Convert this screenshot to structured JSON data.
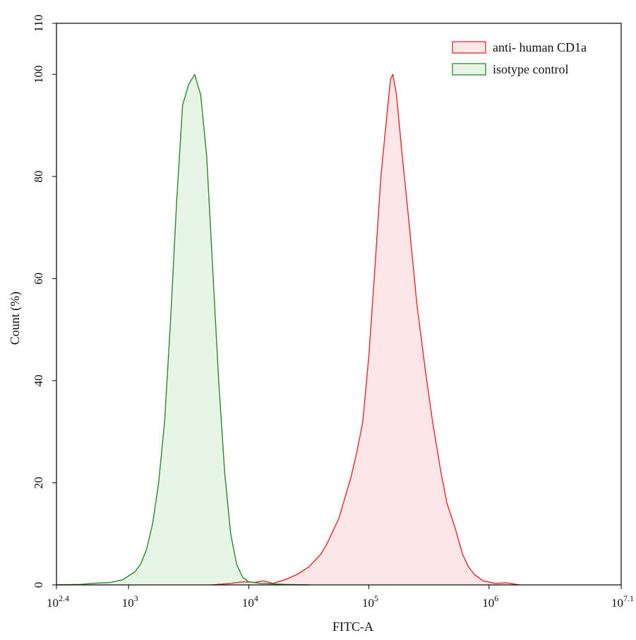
{
  "chart_data": {
    "type": "area",
    "title": "",
    "xlabel": "FITC-A",
    "ylabel": "Count  (%)",
    "xscale": "log10",
    "xlim": [
      2.4,
      7.1
    ],
    "ylim": [
      0,
      110
    ],
    "x_ticks": [
      {
        "exp": 2.4,
        "label": "10",
        "sup": "2.4"
      },
      {
        "exp": 3,
        "label": "10",
        "sup": "3"
      },
      {
        "exp": 4,
        "label": "10",
        "sup": "4"
      },
      {
        "exp": 5,
        "label": "10",
        "sup": "5"
      },
      {
        "exp": 6,
        "label": "10",
        "sup": "6"
      },
      {
        "exp": 7.1,
        "label": "10",
        "sup": "7.1"
      }
    ],
    "y_ticks": [
      "0",
      "20",
      "40",
      "60",
      "80",
      "100",
      "110"
    ],
    "grid": false,
    "legend_position": "top-right",
    "series": [
      {
        "name": "anti- human CD1a",
        "stroke": "#e8262c",
        "fill": "#fde6e7",
        "points": [
          [
            3.7,
            0
          ],
          [
            3.85,
            0.3
          ],
          [
            3.95,
            0.6
          ],
          [
            4.05,
            0.5
          ],
          [
            4.12,
            0.8
          ],
          [
            4.2,
            0.3
          ],
          [
            4.3,
            1.0
          ],
          [
            4.4,
            2.0
          ],
          [
            4.5,
            3.5
          ],
          [
            4.6,
            6.0
          ],
          [
            4.65,
            8.0
          ],
          [
            4.7,
            10.5
          ],
          [
            4.75,
            13.0
          ],
          [
            4.8,
            17.0
          ],
          [
            4.85,
            21.0
          ],
          [
            4.9,
            26.0
          ],
          [
            4.95,
            32.0
          ],
          [
            5.0,
            45.0
          ],
          [
            5.05,
            62.0
          ],
          [
            5.1,
            80.0
          ],
          [
            5.15,
            92.0
          ],
          [
            5.18,
            99.0
          ],
          [
            5.2,
            100.0
          ],
          [
            5.23,
            96.0
          ],
          [
            5.27,
            86.0
          ],
          [
            5.33,
            72.0
          ],
          [
            5.4,
            55.0
          ],
          [
            5.47,
            42.0
          ],
          [
            5.53,
            32.0
          ],
          [
            5.6,
            22.0
          ],
          [
            5.65,
            16.0
          ],
          [
            5.72,
            11.0
          ],
          [
            5.78,
            6.0
          ],
          [
            5.83,
            3.5
          ],
          [
            5.88,
            2.0
          ],
          [
            5.95,
            0.8
          ],
          [
            6.05,
            0.3
          ],
          [
            6.15,
            0.4
          ],
          [
            6.25,
            0
          ]
        ]
      },
      {
        "name": "isotype control",
        "stroke": "#2a8a2a",
        "fill": "#e7f5e7",
        "points": [
          [
            2.4,
            0
          ],
          [
            2.6,
            0.1
          ],
          [
            2.7,
            0.3
          ],
          [
            2.85,
            0.5
          ],
          [
            2.95,
            1.0
          ],
          [
            3.05,
            2.5
          ],
          [
            3.1,
            4.0
          ],
          [
            3.15,
            7.0
          ],
          [
            3.2,
            12.0
          ],
          [
            3.25,
            20.0
          ],
          [
            3.3,
            32.0
          ],
          [
            3.35,
            52.0
          ],
          [
            3.4,
            75.0
          ],
          [
            3.45,
            94.0
          ],
          [
            3.5,
            98.0
          ],
          [
            3.55,
            100.0
          ],
          [
            3.6,
            96.0
          ],
          [
            3.65,
            84.0
          ],
          [
            3.7,
            62.0
          ],
          [
            3.75,
            40.0
          ],
          [
            3.8,
            22.0
          ],
          [
            3.85,
            10.0
          ],
          [
            3.9,
            4.0
          ],
          [
            3.95,
            1.5
          ],
          [
            4.0,
            0.6
          ],
          [
            4.1,
            0.3
          ],
          [
            4.3,
            0.1
          ],
          [
            4.5,
            0
          ]
        ]
      }
    ]
  }
}
